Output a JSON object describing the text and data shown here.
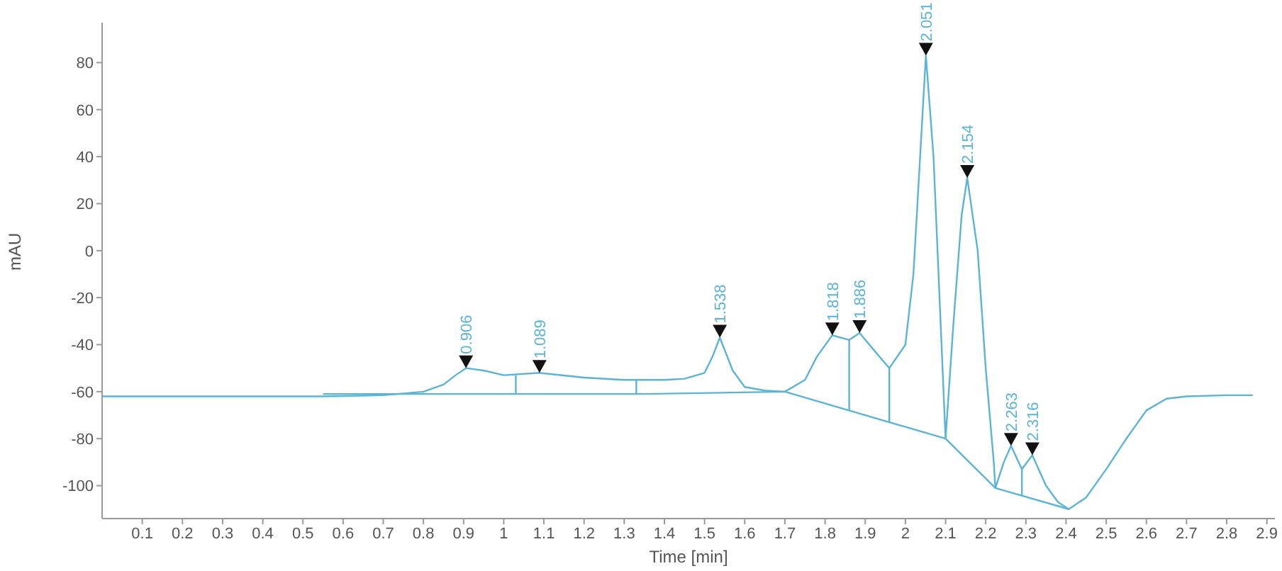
{
  "chart_data": {
    "type": "line",
    "xlabel": "Time [min]",
    "ylabel": "mAU",
    "xlim": [
      0,
      2.92
    ],
    "ylim": [
      -114,
      97
    ],
    "xticks": [
      {
        "value": 0.1,
        "label": "0.1"
      },
      {
        "value": 0.2,
        "label": "0.2"
      },
      {
        "value": 0.3,
        "label": "0.3"
      },
      {
        "value": 0.4,
        "label": "0.4"
      },
      {
        "value": 0.5,
        "label": "0.5"
      },
      {
        "value": 0.6,
        "label": "0.6"
      },
      {
        "value": 0.7,
        "label": "0.7"
      },
      {
        "value": 0.8,
        "label": "0.8"
      },
      {
        "value": 0.9,
        "label": "0.9"
      },
      1,
      {
        "value": 1.1,
        "label": "1.1"
      },
      {
        "value": 1.2,
        "label": "1.2"
      },
      {
        "value": 1.3,
        "label": "1.3"
      },
      {
        "value": 1.4,
        "label": "1.4"
      },
      {
        "value": 1.5,
        "label": "1.5"
      },
      {
        "value": 1.6,
        "label": "1.6"
      },
      {
        "value": 1.7,
        "label": "1.7"
      },
      {
        "value": 1.8,
        "label": "1.8"
      },
      {
        "value": 1.9,
        "label": "1.9"
      },
      2,
      {
        "value": 2.1,
        "label": "2.1"
      },
      {
        "value": 2.2,
        "label": "2.2"
      },
      {
        "value": 2.3,
        "label": "2.3"
      },
      {
        "value": 2.4,
        "label": "2.4"
      },
      {
        "value": 2.5,
        "label": "2.5"
      },
      {
        "value": 2.6,
        "label": "2.6"
      },
      {
        "value": 2.7,
        "label": "2.7"
      },
      {
        "value": 2.8,
        "label": "2.8"
      },
      {
        "value": 2.9,
        "label": "2.9"
      }
    ],
    "yticks": [
      -100,
      -80,
      -60,
      -40,
      -20,
      0,
      20,
      40,
      60,
      80
    ],
    "grid": false,
    "marker": "none",
    "line_style": "solid",
    "series": [
      {
        "color": "#5ab4d8",
        "x": [
          0,
          0.2,
          0.4,
          0.55,
          0.7,
          0.8,
          0.85,
          0.88,
          0.906,
          0.95,
          1.0,
          1.089,
          1.2,
          1.3,
          1.4,
          1.45,
          1.5,
          1.52,
          1.538,
          1.57,
          1.6,
          1.65,
          1.7,
          1.75,
          1.78,
          1.818,
          1.86,
          1.886,
          1.92,
          1.96,
          2.0,
          2.02,
          2.04,
          2.051,
          2.07,
          2.09,
          2.1,
          2.12,
          2.14,
          2.154,
          2.18,
          2.2,
          2.22,
          2.224,
          2.245,
          2.263,
          2.29,
          2.316,
          2.35,
          2.38,
          2.407,
          2.45,
          2.5,
          2.55,
          2.6,
          2.65,
          2.7,
          2.8,
          2.865
        ],
        "values": [
          -62,
          -62,
          -62,
          -62,
          -61.5,
          -60,
          -57,
          -53,
          -50,
          -51,
          -53,
          -52,
          -54,
          -55,
          -55,
          -54.5,
          -52,
          -45,
          -37,
          -51,
          -58,
          -59.5,
          -60,
          -55,
          -45,
          -36,
          -38,
          -35,
          -42,
          -50,
          -40,
          -10,
          50,
          83,
          40,
          -40,
          -80,
          -30,
          15,
          31,
          0,
          -50,
          -90,
          -101,
          -90,
          -83,
          -93,
          -87,
          -100,
          -107,
          -110,
          -105,
          -93,
          -80,
          -68,
          -63,
          -62,
          -61.5,
          -61.5
        ]
      },
      {
        "color": "#5ab4d8",
        "x": [
          0.55,
          1.35,
          1.7,
          2.1,
          2.224,
          2.407
        ],
        "values": [
          -61,
          -61,
          -60,
          -80,
          -101,
          -110
        ]
      },
      {
        "color": "#5ab4d8",
        "x": [
          1.03,
          1.03
        ],
        "values": [
          -61,
          -53
        ]
      },
      {
        "color": "#5ab4d8",
        "x": [
          1.33,
          1.33
        ],
        "values": [
          -61,
          -55
        ]
      },
      {
        "color": "#5ab4d8",
        "x": [
          1.86,
          1.86
        ],
        "values": [
          -68,
          -38
        ]
      },
      {
        "color": "#5ab4d8",
        "x": [
          1.96,
          1.96
        ],
        "values": [
          -73,
          -50
        ]
      },
      {
        "color": "#5ab4d8",
        "x": [
          2.29,
          2.29
        ],
        "values": [
          -104,
          -93
        ]
      }
    ],
    "annotations": [
      {
        "text": "0.906",
        "x": 0.906,
        "y": -50
      },
      {
        "text": "1.089",
        "x": 1.089,
        "y": -52
      },
      {
        "text": "1.538",
        "x": 1.538,
        "y": -37
      },
      {
        "text": "1.818",
        "x": 1.818,
        "y": -36
      },
      {
        "text": "1.886",
        "x": 1.886,
        "y": -35
      },
      {
        "text": "2.051",
        "x": 2.051,
        "y": 83
      },
      {
        "text": "2.154",
        "x": 2.154,
        "y": 31
      },
      {
        "text": "2.263",
        "x": 2.263,
        "y": -83
      },
      {
        "text": "2.316",
        "x": 2.316,
        "y": -87
      }
    ]
  }
}
